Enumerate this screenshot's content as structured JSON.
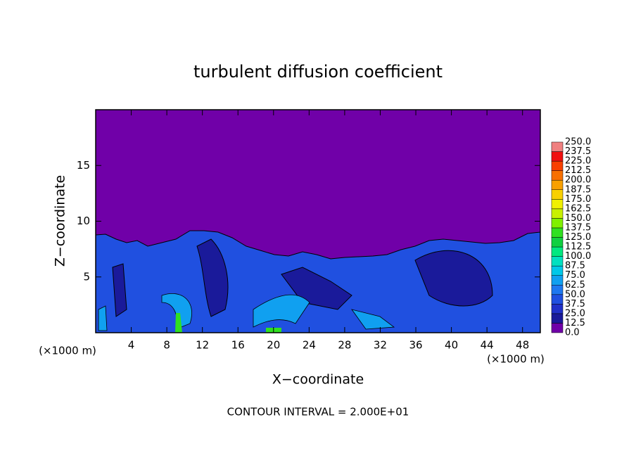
{
  "chart_data": {
    "type": "contour",
    "title": "turbulent diffusion coefficient",
    "xlabel": "X−coordinate",
    "ylabel": "Z−coordinate",
    "xunit_left": "(×1000 m)",
    "xunit_right": "(×1000 m)",
    "note": "CONTOUR INTERVAL = 2.000E+01",
    "xlim": [
      0,
      50
    ],
    "xticks": [
      4,
      8,
      12,
      16,
      20,
      24,
      28,
      32,
      36,
      40,
      44,
      48
    ],
    "ylim": [
      0,
      20
    ],
    "yticks": [
      5,
      10,
      15
    ],
    "colorbar": {
      "levels": [
        {
          "value": 0,
          "label": "0.0"
        },
        12.5,
        {
          "value": 25,
          "label": "25.0"
        },
        37.5,
        {
          "value": 50,
          "label": "50.0"
        },
        62.5,
        {
          "value": 75,
          "label": "75.0"
        },
        87.5,
        {
          "value": 100,
          "label": "100.0"
        },
        112.5,
        {
          "value": 125,
          "label": "125.0"
        },
        137.5,
        {
          "value": 150,
          "label": "150.0"
        },
        162.5,
        {
          "value": 175,
          "label": "175.0"
        },
        187.5,
        {
          "value": 200,
          "label": "200.0"
        },
        212.5,
        {
          "value": 225,
          "label": "225.0"
        },
        237.5,
        {
          "value": 250,
          "label": "250.0"
        }
      ],
      "colors": [
        "#7000a8",
        "#1a1a9a",
        "#2030c8",
        "#2050e0",
        "#1e78f0",
        "#10a0f0",
        "#00c8e8",
        "#00e0c0",
        "#00e880",
        "#10d040",
        "#30e020",
        "#80f000",
        "#c8f000",
        "#f0f000",
        "#f8d000",
        "#f8a000",
        "#f87000",
        "#f84000",
        "#f01010",
        "#f08080"
      ]
    }
  }
}
